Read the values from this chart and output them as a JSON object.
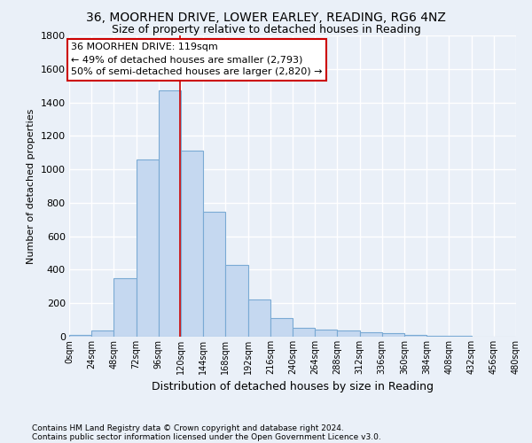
{
  "title": "36, MOORHEN DRIVE, LOWER EARLEY, READING, RG6 4NZ",
  "subtitle": "Size of property relative to detached houses in Reading",
  "xlabel": "Distribution of detached houses by size in Reading",
  "ylabel": "Number of detached properties",
  "bar_color": "#c5d8f0",
  "bar_edge_color": "#7aaad4",
  "bins": [
    0,
    24,
    48,
    72,
    96,
    120,
    144,
    168,
    192,
    216,
    240,
    264,
    288,
    312,
    336,
    360,
    384,
    408,
    432,
    456,
    480
  ],
  "bar_heights": [
    10,
    35,
    350,
    1060,
    1470,
    1110,
    745,
    430,
    225,
    110,
    55,
    45,
    35,
    25,
    20,
    10,
    5,
    5,
    2,
    2
  ],
  "annotation_text": "36 MOORHEN DRIVE: 119sqm\n← 49% of detached houses are smaller (2,793)\n50% of semi-detached houses are larger (2,820) →",
  "annotation_box_color": "#ffffff",
  "annotation_box_edge_color": "#cc0000",
  "property_size": 119,
  "vline_color": "#cc0000",
  "ylim": [
    0,
    1800
  ],
  "yticks": [
    0,
    200,
    400,
    600,
    800,
    1000,
    1200,
    1400,
    1600,
    1800
  ],
  "footnote1": "Contains HM Land Registry data © Crown copyright and database right 2024.",
  "footnote2": "Contains public sector information licensed under the Open Government Licence v3.0.",
  "background_color": "#eaf0f8",
  "plot_bg_color": "#eaf0f8",
  "grid_color": "#ffffff"
}
